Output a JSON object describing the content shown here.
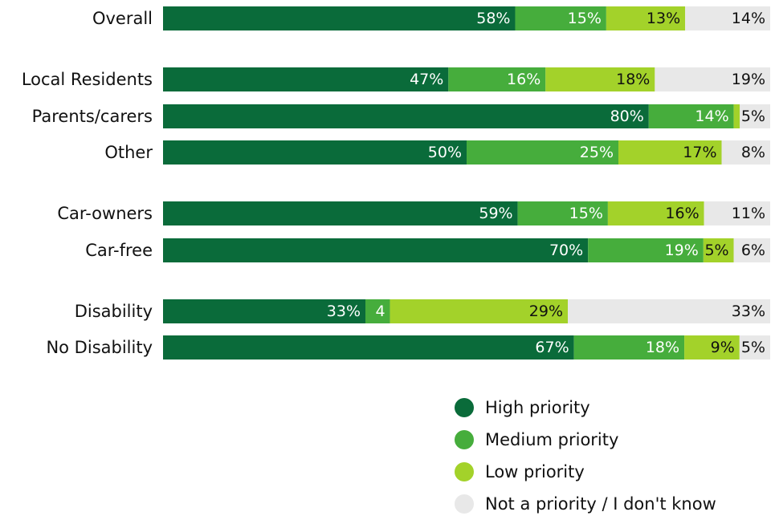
{
  "chart_data": {
    "type": "bar",
    "orientation": "horizontal",
    "stacked": true,
    "normalized_percent": true,
    "categories": [
      "Overall",
      "Local Residents",
      "Parents/carers",
      "Other",
      "Car-owners",
      "Car-free",
      "Disability",
      "No Disability"
    ],
    "groups": [
      [
        "Overall"
      ],
      [
        "Local Residents",
        "Parents/carers",
        "Other"
      ],
      [
        "Car-owners",
        "Car-free"
      ],
      [
        "Disability",
        "No Disability"
      ]
    ],
    "series": [
      {
        "name": "High priority",
        "color": "#0a6b3a",
        "values": [
          58,
          47,
          80,
          50,
          59,
          70,
          33,
          67
        ],
        "labels": [
          "58%",
          "47%",
          "80%",
          "50%",
          "59%",
          "70%",
          "33%",
          "67%"
        ]
      },
      {
        "name": "Medium priority",
        "color": "#46ad3c",
        "values": [
          15,
          16,
          14,
          25,
          15,
          19,
          4,
          18
        ],
        "labels": [
          "15%",
          "16%",
          "14%",
          "25%",
          "15%",
          "19%",
          "4",
          "18%"
        ]
      },
      {
        "name": "Low priority",
        "color": "#a3d22a",
        "values": [
          13,
          18,
          1,
          17,
          16,
          5,
          29,
          9
        ],
        "labels": [
          "13%",
          "18%",
          "",
          "17%",
          "16%",
          "5%",
          "29%",
          "9%"
        ]
      },
      {
        "name": "Not a priority / I don't know",
        "color": "#e8e8e8",
        "values": [
          14,
          19,
          5,
          8,
          11,
          6,
          33,
          5
        ],
        "labels": [
          "14%",
          "19%",
          "5%",
          "8%",
          "11%",
          "6%",
          "33%",
          "5%"
        ]
      }
    ],
    "legend_position": "bottom-right",
    "grid": false
  }
}
